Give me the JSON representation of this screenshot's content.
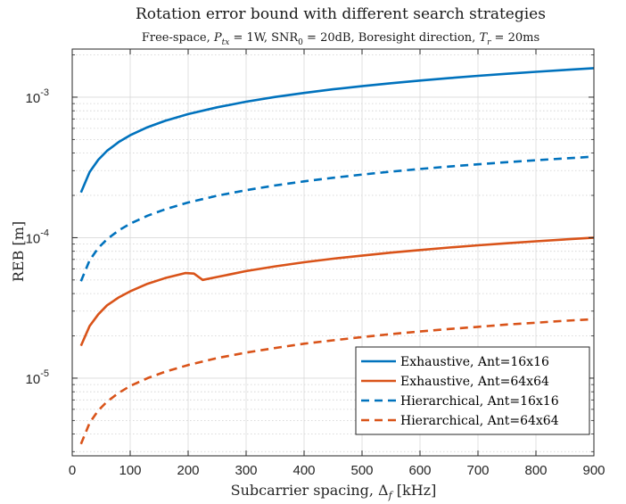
{
  "chart_data": {
    "type": "line",
    "title": "Rotation error bound with different search strategies",
    "subtitle": "Free-space, P_tx = 1W, SNR_0 = 20dB, Boresight direction, T_r = 20ms",
    "xlabel": "Subcarrier spacing, Δ_f [kHz]",
    "ylabel": "REB [m]",
    "xlim": [
      0,
      900
    ],
    "ylim": [
      2.8e-06,
      0.0022
    ],
    "yscale": "log",
    "grid": true,
    "minor_grid": true,
    "legend_position": "bottom-right",
    "x_ticks": [
      0,
      100,
      200,
      300,
      400,
      500,
      600,
      700,
      800,
      900
    ],
    "y_ticks": [
      {
        "base": "10",
        "exp": "-5",
        "value": 1e-05
      },
      {
        "base": "10",
        "exp": "-4",
        "value": 0.0001
      },
      {
        "base": "10",
        "exp": "-3",
        "value": 0.001
      }
    ],
    "series": [
      {
        "name": "Exhaustive, Ant=16x16",
        "color": "#0072BD",
        "style": "solid",
        "x": [
          15,
          30,
          45,
          60,
          80,
          100,
          130,
          160,
          200,
          250,
          300,
          350,
          400,
          450,
          500,
          550,
          600,
          650,
          700,
          750,
          800,
          850,
          900
        ],
        "y": [
          0.00021,
          0.000293,
          0.000359,
          0.000415,
          0.000479,
          0.000536,
          0.000611,
          0.000678,
          0.000758,
          0.000847,
          0.000928,
          0.001003,
          0.001072,
          0.001137,
          0.001198,
          0.001257,
          0.001313,
          0.001366,
          0.001418,
          0.001468,
          0.001516,
          0.001562,
          0.001608
        ]
      },
      {
        "name": "Exhaustive, Ant=64x64",
        "color": "#D95319",
        "style": "solid",
        "x": [
          15,
          30,
          45,
          60,
          80,
          100,
          130,
          160,
          195,
          210,
          225,
          250,
          300,
          350,
          400,
          450,
          500,
          550,
          600,
          650,
          700,
          750,
          800,
          850,
          900
        ],
        "y": [
          1.7e-05,
          2.35e-05,
          2.85e-05,
          3.3e-05,
          3.75e-05,
          4.15e-05,
          4.7e-05,
          5.15e-05,
          5.6e-05,
          5.55e-05,
          5e-05,
          5.25e-05,
          5.78e-05,
          6.25e-05,
          6.68e-05,
          7.08e-05,
          7.45e-05,
          7.82e-05,
          8.17e-05,
          8.5e-05,
          8.82e-05,
          9.13e-05,
          9.42e-05,
          9.71e-05,
          0.0001
        ]
      },
      {
        "name": "Hierarchical, Ant=16x16",
        "color": "#0072BD",
        "style": "dashed",
        "x": [
          15,
          30,
          45,
          60,
          80,
          100,
          130,
          160,
          200,
          250,
          300,
          350,
          400,
          450,
          500,
          550,
          600,
          650,
          700,
          750,
          800,
          850,
          900
        ],
        "y": [
          4.9e-05,
          6.9e-05,
          8.45e-05,
          9.75e-05,
          0.0001125,
          0.0001258,
          0.0001434,
          0.0001591,
          0.0001779,
          0.0001989,
          0.0002179,
          0.0002353,
          0.0002516,
          0.0002668,
          0.0002813,
          0.000295,
          0.0003082,
          0.0003207,
          0.0003328,
          0.0003445,
          0.0003558,
          0.0003667,
          0.0003774
        ]
      },
      {
        "name": "Hierarchical, Ant=64x64",
        "color": "#D95319",
        "style": "dashed",
        "x": [
          15,
          30,
          45,
          60,
          80,
          100,
          130,
          160,
          200,
          250,
          300,
          350,
          400,
          450,
          500,
          550,
          600,
          650,
          700,
          750,
          800,
          850,
          900
        ],
        "y": [
          3.4e-06,
          4.8e-06,
          5.9e-06,
          6.8e-06,
          7.85e-06,
          8.8e-06,
          1e-05,
          1.11e-05,
          1.24e-05,
          1.39e-05,
          1.52e-05,
          1.64e-05,
          1.76e-05,
          1.86e-05,
          1.96e-05,
          2.06e-05,
          2.15e-05,
          2.24e-05,
          2.32e-05,
          2.41e-05,
          2.48e-05,
          2.56e-05,
          2.63e-05
        ]
      }
    ]
  }
}
